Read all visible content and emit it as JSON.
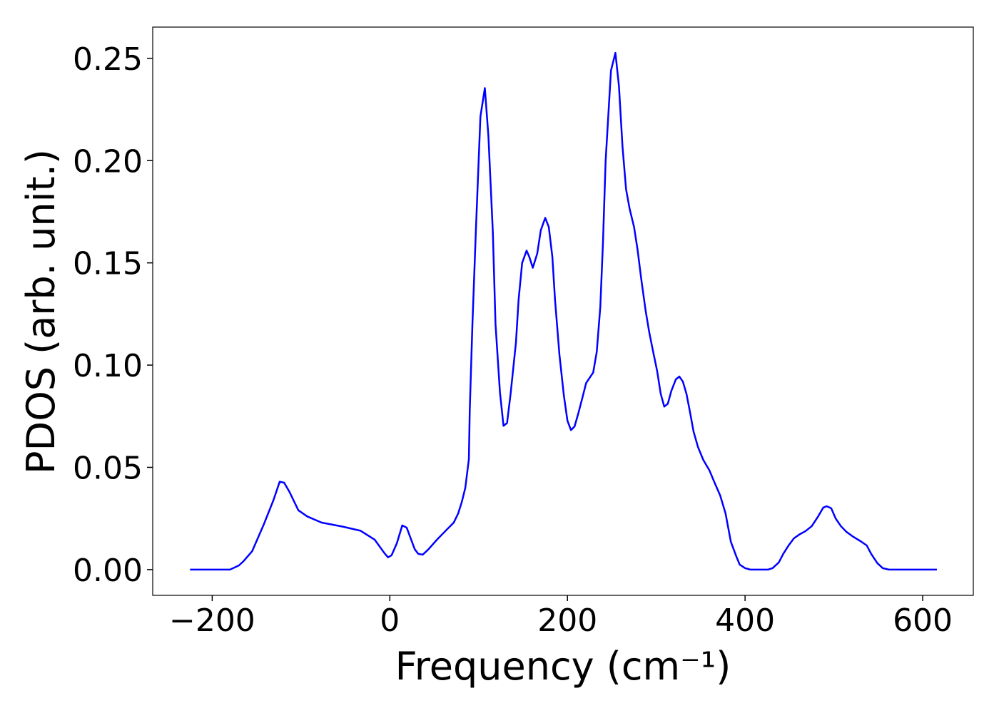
{
  "chart_data": {
    "type": "line",
    "xlabel": "Frequency (cm⁻¹)",
    "ylabel": "PDOS (arb. unit.)",
    "xlim": [
      -267,
      657
    ],
    "ylim": [
      -0.0126,
      0.2653
    ],
    "xticks": [
      {
        "value": -200,
        "label": "−200"
      },
      0,
      200,
      400,
      600
    ],
    "yticks": [
      {
        "value": 0,
        "label": "0.00"
      },
      {
        "value": 0.05,
        "label": "0.05"
      },
      {
        "value": 0.1,
        "label": "0.10"
      },
      {
        "value": 0.15,
        "label": "0.15"
      },
      {
        "value": 0.2,
        "label": "0.20"
      },
      {
        "value": 0.25,
        "label": "0.25"
      }
    ],
    "series": [
      {
        "color": "#0000ff",
        "x": [
          -225,
          -180,
          -170,
          -165,
          -155,
          -142,
          -131,
          -124,
          -119,
          -113,
          -103,
          -93,
          -77,
          -53,
          -33,
          -17,
          -6,
          -2,
          2,
          8,
          14,
          19,
          28,
          32,
          37,
          43,
          53,
          64,
          72,
          77,
          81,
          85,
          89,
          90,
          93,
          97,
          102,
          107,
          111,
          116,
          119,
          124,
          128,
          132,
          136,
          142,
          145,
          149,
          154,
          157,
          161,
          166,
          170,
          175,
          179,
          183,
          186,
          191,
          196,
          200,
          204,
          208,
          212,
          217,
          221,
          229,
          233,
          237,
          240,
          243,
          249,
          254,
          258,
          262,
          266,
          270,
          275,
          279,
          283,
          288,
          292,
          296,
          301,
          305,
          309,
          313,
          317,
          322,
          326,
          330,
          334,
          338,
          342,
          347,
          353,
          360,
          365,
          372,
          378,
          384,
          390,
          394,
          400,
          406,
          426,
          431,
          438,
          443,
          449,
          455,
          462,
          468,
          475,
          482,
          488,
          492,
          497,
          502,
          508,
          514,
          522,
          530,
          537,
          542,
          549,
          555,
          562,
          616
        ],
        "values": [
          0,
          0,
          0.002,
          0.004,
          0.009,
          0.022,
          0.034,
          0.043,
          0.0425,
          0.038,
          0.029,
          0.026,
          0.023,
          0.021,
          0.019,
          0.0146,
          0.008,
          0.006,
          0.007,
          0.013,
          0.0216,
          0.0205,
          0.01,
          0.0077,
          0.0073,
          0.0097,
          0.0146,
          0.0195,
          0.023,
          0.0275,
          0.033,
          0.04,
          0.054,
          0.078,
          0.12,
          0.167,
          0.2215,
          0.2355,
          0.212,
          0.165,
          0.12,
          0.0867,
          0.0703,
          0.0717,
          0.086,
          0.111,
          0.132,
          0.15,
          0.156,
          0.153,
          0.1476,
          0.1546,
          0.166,
          0.172,
          0.1675,
          0.153,
          0.132,
          0.105,
          0.085,
          0.0728,
          0.0682,
          0.07,
          0.076,
          0.0843,
          0.0912,
          0.0964,
          0.1065,
          0.1285,
          0.16,
          0.2,
          0.244,
          0.2527,
          0.2364,
          0.2068,
          0.186,
          0.1765,
          0.1675,
          0.1563,
          0.1424,
          0.1267,
          0.1163,
          0.1076,
          0.0971,
          0.086,
          0.0797,
          0.0811,
          0.0874,
          0.093,
          0.0944,
          0.0919,
          0.086,
          0.077,
          0.0675,
          0.0599,
          0.0536,
          0.0484,
          0.0432,
          0.0362,
          0.0275,
          0.0136,
          0.0066,
          0.0024,
          0.0007,
          0,
          0,
          0.0007,
          0.0035,
          0.0077,
          0.0118,
          0.0153,
          0.0174,
          0.0188,
          0.0212,
          0.0258,
          0.0303,
          0.031,
          0.03,
          0.025,
          0.0212,
          0.0185,
          0.016,
          0.0139,
          0.0118,
          0.0077,
          0.0031,
          0.0007,
          0,
          0
        ]
      }
    ]
  }
}
